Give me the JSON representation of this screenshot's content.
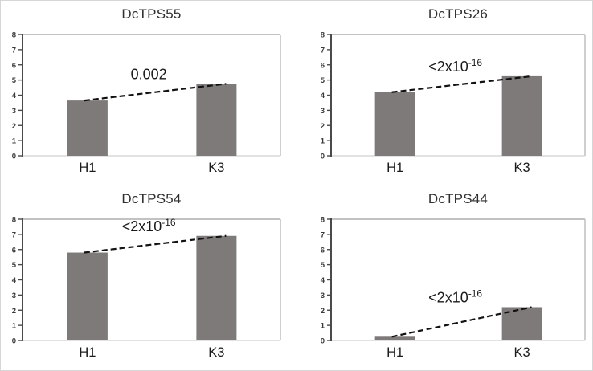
{
  "figure": {
    "background": "#ffffff",
    "description_texts": [],
    "style": {
      "bar_color": "#7e7a79",
      "axis_color": "#4a4a4a",
      "plot_border_top_color": "#aeaeae",
      "plot_border_right_color": "#c3c3c3",
      "plot_border_bottom_color": "#d8d8d8",
      "dashed_line_color": "#121212",
      "title_color": "#2f2f2f",
      "tick_label_color": "#3a3a3a",
      "category_label_color": "#1c1c1c"
    }
  },
  "chart_data": [
    {
      "type": "bar",
      "title": "DcTPS55",
      "categories": [
        "H1",
        "K3"
      ],
      "values": [
        3.65,
        4.75
      ],
      "ylim": [
        0,
        8
      ],
      "yticks": [
        "0",
        "1",
        "2",
        "3",
        "4",
        "5",
        "6",
        "7",
        "8"
      ],
      "xlabel": "",
      "ylabel": "",
      "grid": false,
      "legend": "none",
      "annotation": {
        "text": "0.002",
        "base": "0.002",
        "sup": ""
      }
    },
    {
      "type": "bar",
      "title": "DcTPS26",
      "categories": [
        "H1",
        "K3"
      ],
      "values": [
        4.2,
        5.25
      ],
      "ylim": [
        0,
        8
      ],
      "yticks": [
        "0",
        "1",
        "2",
        "3",
        "4",
        "5",
        "6",
        "7",
        "8"
      ],
      "xlabel": "",
      "ylabel": "",
      "grid": false,
      "legend": "none",
      "annotation": {
        "text": "<2x10-16",
        "base": "<2x10",
        "sup": "-16"
      }
    },
    {
      "type": "bar",
      "title": "DcTPS54",
      "categories": [
        "H1",
        "K3"
      ],
      "values": [
        5.8,
        6.9
      ],
      "ylim": [
        0,
        8
      ],
      "yticks": [
        "0",
        "1",
        "2",
        "3",
        "4",
        "5",
        "6",
        "7",
        "8"
      ],
      "xlabel": "",
      "ylabel": "",
      "grid": false,
      "legend": "none",
      "annotation": {
        "text": "<2x10-16",
        "base": "<2x10",
        "sup": "-16"
      }
    },
    {
      "type": "bar",
      "title": "DcTPS44",
      "categories": [
        "H1",
        "K3"
      ],
      "values": [
        0.25,
        2.2
      ],
      "ylim": [
        0,
        8
      ],
      "yticks": [
        "0",
        "1",
        "2",
        "3",
        "4",
        "5",
        "6",
        "7",
        "8"
      ],
      "xlabel": "",
      "ylabel": "",
      "grid": false,
      "legend": "none",
      "annotation": {
        "text": "<2x10-16",
        "base": "<2x10",
        "sup": "-16"
      }
    }
  ]
}
